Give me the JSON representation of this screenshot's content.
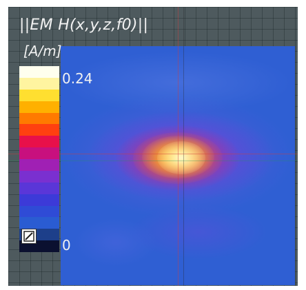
{
  "viewer": {
    "title": "||EM H(x,y,z,f0)||",
    "units": "[A/m]",
    "colorbar": {
      "max_label": "0.24",
      "min_label": "0",
      "segments": [
        "#ffffee",
        "#fff4a0",
        "#ffdf30",
        "#ffb000",
        "#ff7a00",
        "#ff4010",
        "#e8104a",
        "#c8107e",
        "#a020b4",
        "#7a30d0",
        "#5a36d8",
        "#3c3ad8",
        "#2f4bd6",
        "#2a5cd2",
        "#1d3f8a",
        "#0b1030"
      ]
    },
    "scale_toggle_icon": "diagonal-slash-icon"
  }
}
